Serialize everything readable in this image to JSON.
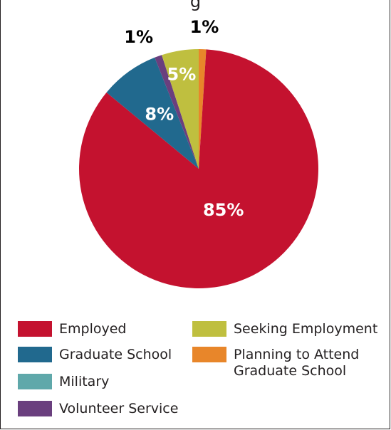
{
  "chart_data": {
    "type": "pie",
    "title": "",
    "start_angle_deg": 0,
    "slices": [
      {
        "label": "Planning to Attend\nGraduate School",
        "value": 1,
        "display": "1%",
        "color": "#e8862a"
      },
      {
        "label": "Employed",
        "value": 85,
        "display": "85%",
        "color": "#c4122f"
      },
      {
        "label": "Graduate School",
        "value": 8,
        "display": "8%",
        "color": "#21698e"
      },
      {
        "label": "Military",
        "value": 0,
        "display": "",
        "color": "#5fa8aa"
      },
      {
        "label": "Volunteer Service",
        "value": 1,
        "display": "1%",
        "color": "#6a3f7e"
      },
      {
        "label": "Seeking Employment",
        "value": 5,
        "display": "5%",
        "color": "#bfbf3f"
      }
    ]
  },
  "legend": [
    {
      "key": "employed",
      "label": "Employed",
      "color": "#c4122f"
    },
    {
      "key": "graduate-school",
      "label": "Graduate School",
      "color": "#21698e"
    },
    {
      "key": "military",
      "label": "Military",
      "color": "#5fa8aa"
    },
    {
      "key": "volunteer-service",
      "label": "Volunteer Service",
      "color": "#6a3f7e"
    },
    {
      "key": "seeking-employment",
      "label": "Seeking Employment",
      "color": "#bfbf3f"
    },
    {
      "key": "planning-grad-school",
      "label": "Planning to Attend\nGraduate School",
      "color": "#e8862a"
    }
  ]
}
